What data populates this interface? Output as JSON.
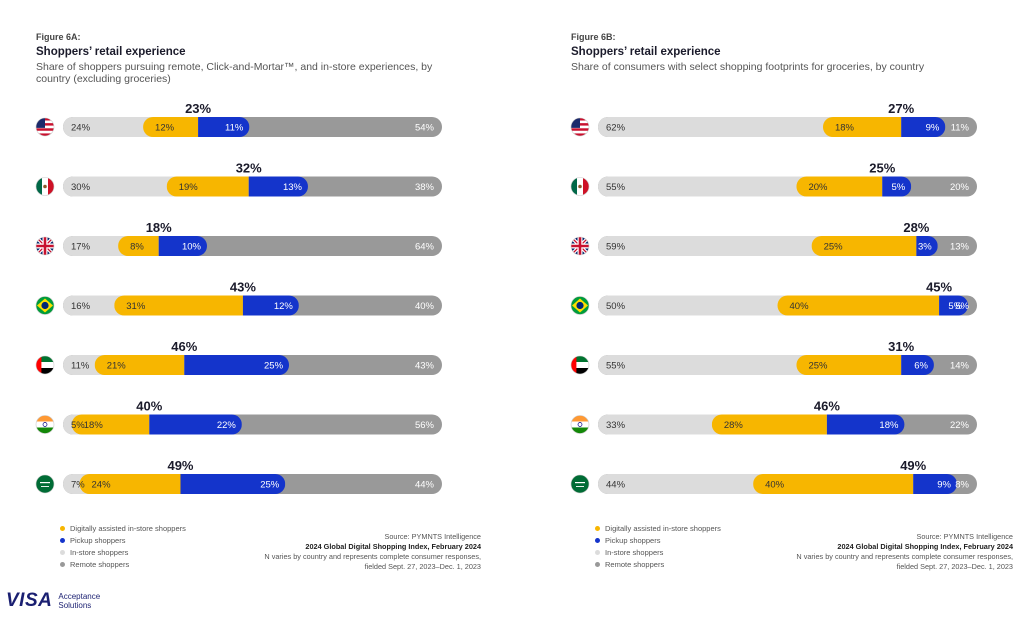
{
  "colors": {
    "digital": "#F7B600",
    "pickup": "#1434CB",
    "instore": "#DCDCDC",
    "remote": "#999999"
  },
  "panels": [
    {
      "figure_label": "Figure 6A:",
      "title": "Shoppers’ retail experience",
      "subtitle": "Share of shoppers pursuing remote, Click-and-Mortar™, and in-store experiences, by country (excluding groceries)",
      "legend": [
        "Digitally assisted in-store shoppers",
        "Pickup shoppers",
        "In-store shoppers",
        "Remote shoppers"
      ],
      "source": {
        "line1": "Source: PYMNTS Intelligence",
        "line2": "2024 Global Digital Shopping Index, February 2024",
        "line3": "N varies by country and represents complete consumer responses,",
        "line4": "fielded Sept. 27, 2023–Dec. 1, 2023"
      }
    },
    {
      "figure_label": "Figure 6B:",
      "title": "Shoppers’ retail experience",
      "subtitle": "Share of consumers with select shopping footprints for groceries, by country",
      "legend": [
        "Digitally assisted in-store shoppers",
        "Pickup shoppers",
        "In-store shoppers",
        "Remote shoppers"
      ],
      "source": {
        "line1": "Source: PYMNTS Intelligence",
        "line2": "2024 Global Digital Shopping Index, February 2024",
        "line3": "N varies by country and represents complete consumer responses,",
        "line4": "fielded Sept. 27, 2023–Dec. 1, 2023"
      }
    }
  ],
  "chart_data": [
    {
      "type": "bar",
      "stacked": true,
      "orientation": "horizontal",
      "categories": [
        "United States",
        "Mexico",
        "United Kingdom",
        "Brazil",
        "United Arab Emirates",
        "India",
        "Saudi Arabia"
      ],
      "series": [
        {
          "name": "In-store shoppers",
          "values": [
            24,
            30,
            17,
            16,
            11,
            5,
            7
          ]
        },
        {
          "name": "Digitally assisted in-store shoppers",
          "values": [
            12,
            19,
            8,
            31,
            21,
            18,
            24
          ]
        },
        {
          "name": "Pickup shoppers",
          "values": [
            11,
            13,
            10,
            12,
            25,
            22,
            25
          ]
        },
        {
          "name": "Remote shoppers",
          "values": [
            54,
            38,
            64,
            40,
            43,
            56,
            44
          ]
        }
      ],
      "click_and_mortar_totals": [
        23,
        32,
        18,
        43,
        46,
        40,
        49
      ],
      "labels": {
        "instore": [
          "24%",
          "30%",
          "17%",
          "16%",
          "11%",
          "5%",
          "7%"
        ],
        "digital": [
          "12%",
          "19%",
          "8%",
          "31%",
          "21%",
          "18%",
          "24%"
        ],
        "pickup": [
          "11%",
          "13%",
          "10%",
          "12%",
          "25%",
          "22%",
          "25%"
        ],
        "remote": [
          "54%",
          "38%",
          "64%",
          "40%",
          "43%",
          "56%",
          "44%"
        ],
        "total": [
          "23%",
          "32%",
          "18%",
          "43%",
          "46%",
          "40%",
          "49%"
        ]
      },
      "legend_position": "bottom-left"
    },
    {
      "type": "bar",
      "stacked": true,
      "orientation": "horizontal",
      "categories": [
        "United States",
        "Mexico",
        "United Kingdom",
        "Brazil",
        "United Arab Emirates",
        "India",
        "Saudi Arabia"
      ],
      "series": [
        {
          "name": "In-store shoppers",
          "values": [
            62,
            55,
            59,
            50,
            55,
            33,
            44
          ]
        },
        {
          "name": "Digitally assisted in-store shoppers",
          "values": [
            18,
            20,
            25,
            40,
            25,
            28,
            40
          ]
        },
        {
          "name": "Pickup shoppers",
          "values": [
            9,
            5,
            3,
            5,
            6,
            18,
            9
          ]
        },
        {
          "name": "Remote shoppers",
          "values": [
            11,
            20,
            13,
            5,
            14,
            22,
            8
          ]
        }
      ],
      "click_and_mortar_totals": [
        27,
        25,
        28,
        45,
        31,
        46,
        49
      ],
      "labels": {
        "instore": [
          "62%",
          "55%",
          "59%",
          "50%",
          "55%",
          "33%",
          "44%"
        ],
        "digital": [
          "18%",
          "20%",
          "25%",
          "40%",
          "25%",
          "28%",
          "40%"
        ],
        "pickup": [
          "9%",
          "5%",
          "3%",
          "5%",
          "6%",
          "18%",
          "9%"
        ],
        "remote": [
          "11%",
          "20%",
          "13%",
          "5%",
          "14%",
          "22%",
          "8%"
        ],
        "total": [
          "27%",
          "25%",
          "28%",
          "45%",
          "31%",
          "46%",
          "49%"
        ]
      },
      "legend_position": "bottom-left"
    }
  ],
  "flags": [
    "us-flag-icon",
    "mexico-flag-icon",
    "uk-flag-icon",
    "brazil-flag-icon",
    "uae-flag-icon",
    "india-flag-icon",
    "saudi-arabia-flag-icon"
  ],
  "brand": {
    "logo": "VISA",
    "sub": "Acceptance Solutions"
  }
}
